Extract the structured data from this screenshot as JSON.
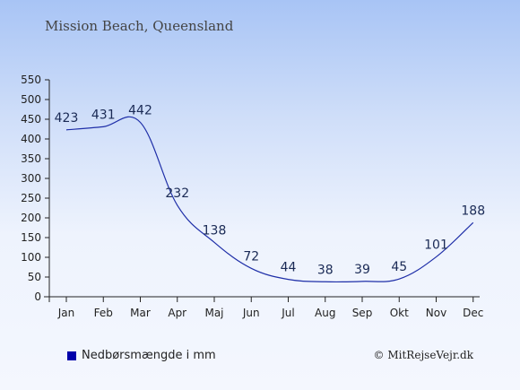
{
  "title": "Mission Beach, Queensland",
  "credit": "© MitRejseVejr.dk",
  "chart_data": {
    "type": "line",
    "categories": [
      "Jan",
      "Feb",
      "Mar",
      "Apr",
      "Maj",
      "Jun",
      "Jul",
      "Aug",
      "Sep",
      "Okt",
      "Nov",
      "Dec"
    ],
    "series": [
      {
        "name": "Nedbørsmængde i mm",
        "values": [
          423,
          431,
          442,
          232,
          138,
          72,
          44,
          38,
          39,
          45,
          101,
          188
        ]
      }
    ],
    "yticks": [
      "0",
      "50",
      "100",
      "150",
      "200",
      "250",
      "300",
      "350",
      "400",
      "450",
      "500",
      "550"
    ],
    "ylim": [
      0,
      550
    ],
    "grid": false,
    "legend_position": "bottom-left",
    "line_color": "#1f2fa8",
    "label_color": "#1a2a55"
  }
}
